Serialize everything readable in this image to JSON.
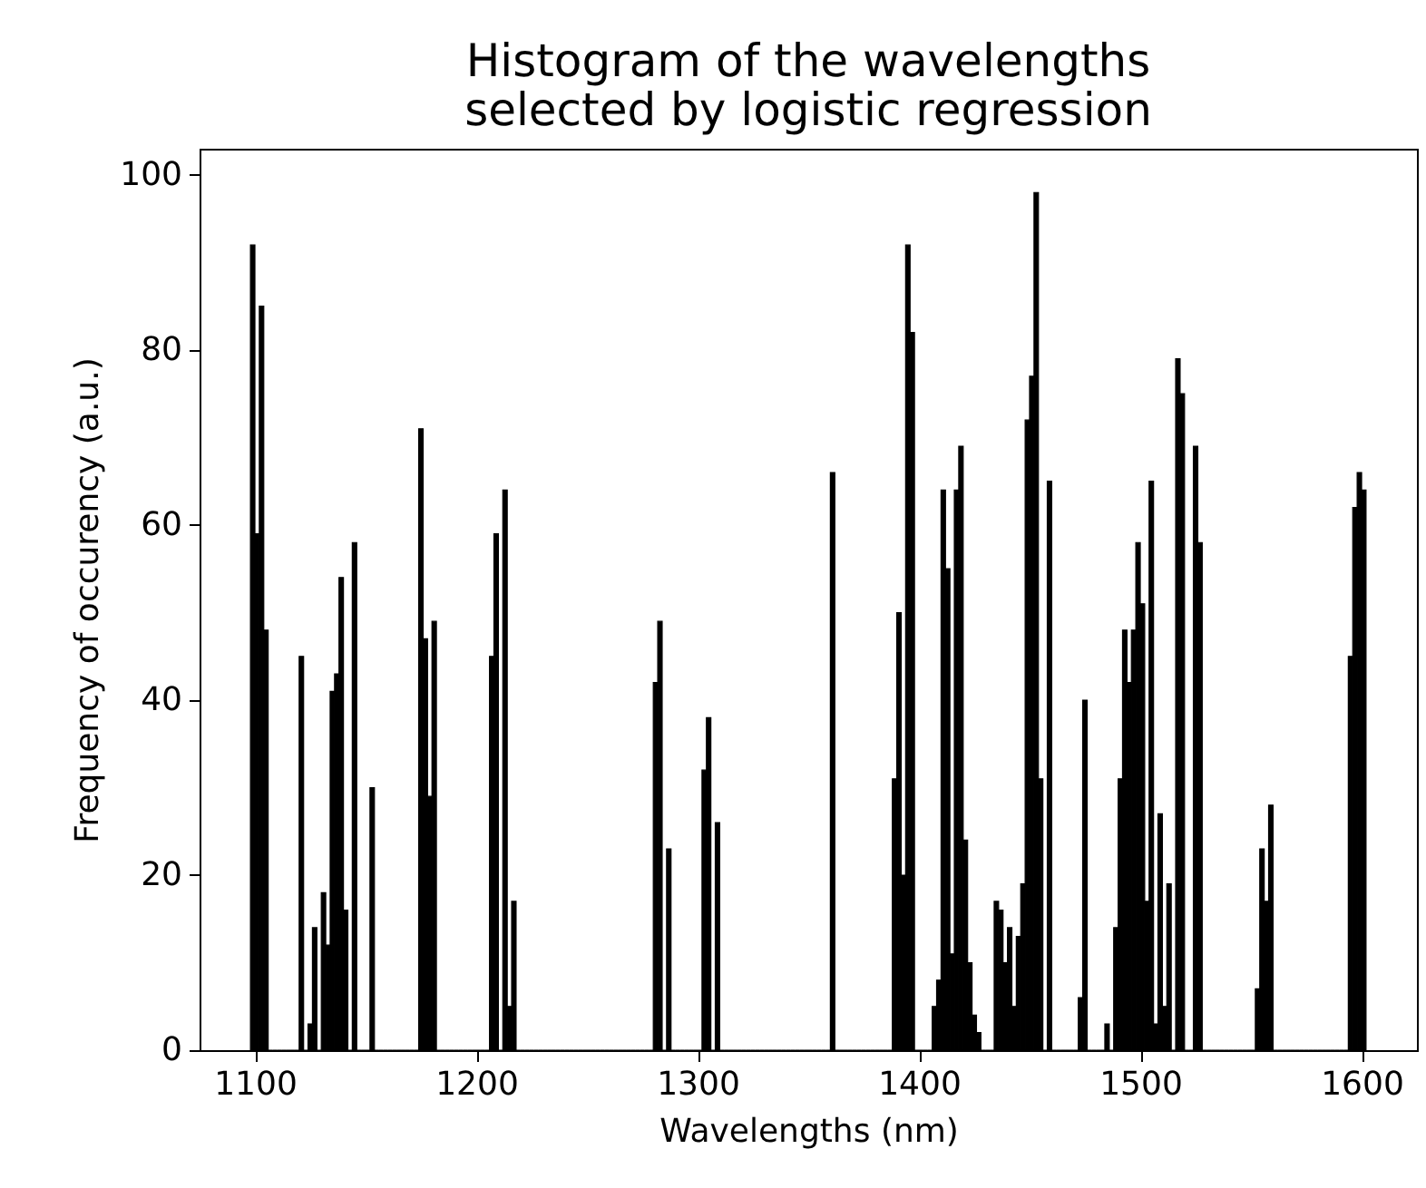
{
  "chart_data": {
    "type": "histogram",
    "title": "Histogram of the wavelengths\nselected by logistic regression",
    "xlabel": "Wavelengths (nm)",
    "ylabel": "Frequency of occurency (a.u.)",
    "bins": [
      1098,
      1100,
      1102,
      1104,
      1106,
      1108,
      1110,
      1112,
      1114,
      1116,
      1118,
      1120,
      1122,
      1124,
      1126,
      1128,
      1130,
      1132,
      1134,
      1136,
      1138,
      1140,
      1142,
      1144,
      1146,
      1148,
      1150,
      1152,
      1154,
      1156,
      1158,
      1160,
      1162,
      1164,
      1166,
      1168,
      1170,
      1172,
      1174,
      1176,
      1178,
      1180,
      1182,
      1184,
      1186,
      1188,
      1190,
      1192,
      1194,
      1196,
      1198,
      1200,
      1202,
      1204,
      1206,
      1208,
      1210,
      1212,
      1214,
      1216,
      1218,
      1220,
      1222,
      1224,
      1226,
      1228,
      1230,
      1232,
      1234,
      1236,
      1238,
      1240,
      1242,
      1244,
      1246,
      1248,
      1250,
      1252,
      1254,
      1256,
      1258,
      1260,
      1262,
      1264,
      1266,
      1268,
      1270,
      1272,
      1274,
      1276,
      1278,
      1280,
      1282,
      1284,
      1286,
      1288,
      1290,
      1292,
      1294,
      1296,
      1298,
      1300,
      1302,
      1304,
      1306,
      1308,
      1310,
      1312,
      1314,
      1316,
      1318,
      1320,
      1322,
      1324,
      1326,
      1328,
      1330,
      1332,
      1334,
      1336,
      1338,
      1340,
      1342,
      1344,
      1346,
      1348,
      1350,
      1352,
      1354,
      1356,
      1358,
      1360,
      1362,
      1364,
      1366,
      1368,
      1370,
      1372,
      1374,
      1376,
      1378,
      1380,
      1382,
      1384,
      1386,
      1388,
      1390,
      1392,
      1394,
      1396,
      1398,
      1400,
      1402,
      1404,
      1406,
      1408,
      1410,
      1412,
      1414,
      1416,
      1418,
      1420,
      1422,
      1424,
      1426,
      1428,
      1430,
      1432,
      1434,
      1436,
      1438,
      1440,
      1442,
      1444,
      1446,
      1448,
      1450,
      1452,
      1454,
      1456,
      1458,
      1460,
      1462,
      1464,
      1466,
      1468,
      1470,
      1472,
      1474,
      1476,
      1478,
      1480,
      1482,
      1484,
      1486,
      1488,
      1490,
      1492,
      1494,
      1496,
      1498,
      1500,
      1502,
      1504,
      1506,
      1508,
      1510,
      1512,
      1514,
      1516,
      1518,
      1520,
      1522,
      1524,
      1526,
      1528,
      1530,
      1532,
      1534,
      1536,
      1538,
      1540,
      1542,
      1544,
      1546,
      1548,
      1550,
      1552,
      1554,
      1556,
      1558,
      1560,
      1562,
      1564,
      1566,
      1568,
      1570,
      1572,
      1574,
      1576,
      1578,
      1580,
      1582,
      1584,
      1586,
      1588,
      1590,
      1592,
      1594,
      1596,
      1598,
      1600,
      1602
    ],
    "values": [
      92,
      59,
      85,
      48,
      0,
      0,
      0,
      0,
      0,
      0,
      0,
      45,
      0,
      3,
      14,
      0,
      18,
      12,
      41,
      43,
      54,
      16,
      0,
      58,
      0,
      0,
      0,
      30,
      0,
      0,
      0,
      0,
      0,
      0,
      0,
      0,
      0,
      0,
      71,
      47,
      29,
      49,
      0,
      0,
      0,
      0,
      0,
      0,
      0,
      0,
      0,
      0,
      0,
      0,
      45,
      59,
      0,
      64,
      5,
      17,
      0,
      0,
      0,
      0,
      0,
      0,
      0,
      0,
      0,
      0,
      0,
      0,
      0,
      0,
      0,
      0,
      0,
      0,
      0,
      0,
      0,
      0,
      0,
      0,
      0,
      0,
      0,
      0,
      0,
      0,
      0,
      42,
      49,
      0,
      23,
      0,
      0,
      0,
      0,
      0,
      0,
      0,
      32,
      38,
      0,
      26,
      0,
      0,
      0,
      0,
      0,
      0,
      0,
      0,
      0,
      0,
      0,
      0,
      0,
      0,
      0,
      0,
      0,
      0,
      0,
      0,
      0,
      0,
      0,
      0,
      0,
      66,
      0,
      0,
      0,
      0,
      0,
      0,
      0,
      0,
      0,
      0,
      0,
      0,
      0,
      31,
      50,
      20,
      92,
      82,
      0,
      0,
      0,
      0,
      5,
      8,
      64,
      55,
      11,
      64,
      69,
      24,
      10,
      4,
      2,
      0,
      0,
      0,
      17,
      16,
      10,
      14,
      5,
      13,
      19,
      72,
      77,
      98,
      31,
      0,
      65,
      0,
      0,
      0,
      0,
      0,
      0,
      6,
      40,
      0,
      0,
      0,
      0,
      3,
      0,
      14,
      31,
      48,
      42,
      48,
      58,
      51,
      17,
      65,
      3,
      27,
      5,
      19,
      0,
      79,
      75,
      0,
      0,
      69,
      58,
      0,
      0,
      0,
      0,
      0,
      0,
      0,
      0,
      0,
      0,
      0,
      0,
      7,
      23,
      17,
      28,
      0,
      0,
      0,
      0,
      0,
      0,
      0,
      0,
      0,
      0,
      0,
      0,
      0,
      0,
      0,
      0,
      0,
      45,
      62,
      66,
      64
    ],
    "color": "#000000",
    "xlim": [
      1075,
      1625
    ],
    "ylim": [
      0,
      103
    ],
    "xticks": [
      1100,
      1200,
      1300,
      1400,
      1500,
      1600
    ],
    "yticks": [
      0,
      20,
      40,
      60,
      80,
      100
    ],
    "grid": false
  }
}
